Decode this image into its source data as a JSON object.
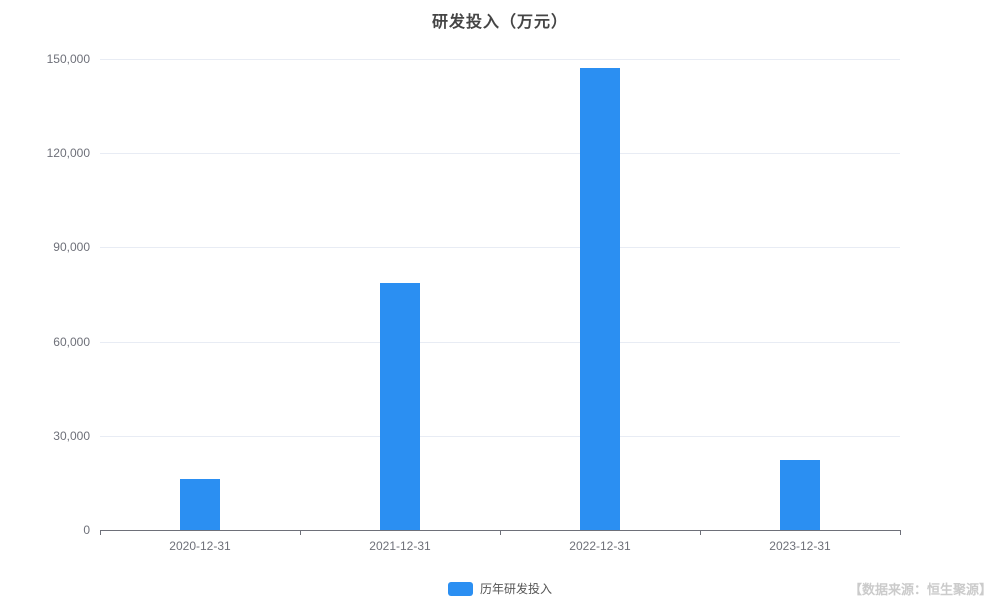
{
  "chart_data": {
    "type": "bar",
    "title": "研发投入（万元）",
    "categories": [
      "2020-12-31",
      "2021-12-31",
      "2022-12-31",
      "2023-12-31"
    ],
    "series": [
      {
        "name": "历年研发投入",
        "values": [
          16200,
          78700,
          147100,
          22300
        ]
      }
    ],
    "xlabel": "",
    "ylabel": "",
    "ylim": [
      0,
      150000
    ],
    "yticks": [
      0,
      30000,
      60000,
      90000,
      120000,
      150000
    ],
    "ytick_labels": [
      "0",
      "30,000",
      "60,000",
      "90,000",
      "120,000",
      "150,000"
    ],
    "grid": true,
    "legend_position": "bottom",
    "bar_color": "#2b8ff2",
    "gridline_color": "#e8ecf4",
    "axis_color": "#6e7079"
  },
  "source_note": "【数据来源：恒生聚源】"
}
